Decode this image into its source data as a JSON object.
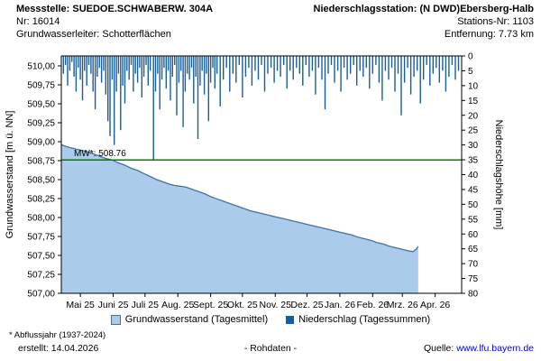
{
  "header": {
    "messstelle_label": "Messstelle:",
    "messstelle_value": "SUEDOE.SCHWABERW. 304A",
    "nr_label": "Nr:",
    "nr_value": "16014",
    "aquifer_label": "Grundwasserleiter:",
    "aquifer_value": "Schotterflächen",
    "station_label": "Niederschlagsstation:",
    "station_value": "(N DWD)Ebersberg-Halb",
    "station_nr_label": "Stations-Nr:",
    "station_nr_value": "1103",
    "distance_label": "Entfernung:",
    "distance_value": "7.73 km"
  },
  "chart_data": {
    "type": "combo",
    "x_axis": {
      "tick_labels": [
        "Mai 25",
        "Juni 25",
        "Juli 25",
        "Aug. 25",
        "Sept. 25",
        "Okt. 25",
        "Nov. 25",
        "Dez. 25",
        "Jan. 26",
        "Feb. 26",
        "Mrz. 26",
        "Apr. 26"
      ],
      "tick_days": [
        18,
        49,
        79,
        110,
        141,
        171,
        202,
        232,
        263,
        294,
        322,
        353
      ],
      "range_days": [
        0,
        378
      ]
    },
    "y_left": {
      "label": "Grundwasserstand [m ü. NN]",
      "min": 507.0,
      "max": 510.0,
      "tick_values": [
        510.0,
        509.75,
        509.5,
        509.25,
        509.0,
        508.75,
        508.5,
        508.25,
        508.0,
        507.75,
        507.5,
        507.25,
        507.0
      ],
      "tick_labels": [
        "510,00",
        "509,75",
        "509,50",
        "509,25",
        "509,00",
        "508,75",
        "508,50",
        "508,25",
        "508,00",
        "507,75",
        "507,50",
        "507,25",
        "507,00"
      ]
    },
    "y_right": {
      "label": "Niederschlagshöhe [mm]",
      "min": 0,
      "max": 80,
      "inverted": true,
      "tick_values": [
        0,
        5,
        10,
        15,
        20,
        25,
        30,
        35,
        40,
        45,
        50,
        55,
        60,
        65,
        70,
        75,
        80
      ],
      "tick_labels": [
        "0",
        "5",
        "10",
        "15",
        "20",
        "25",
        "30",
        "35",
        "40",
        "45",
        "50",
        "55",
        "60",
        "65",
        "70",
        "75",
        "80"
      ]
    },
    "reference_line": {
      "label": "MW*: 508.76",
      "value": 508.76,
      "color": "#008000"
    },
    "series": [
      {
        "name": "Grundwasserstand (Tagesmittel)",
        "type": "area",
        "axis": "left",
        "color_fill": "#aacbe9",
        "color_line": "#3f72a8",
        "points": [
          [
            0,
            508.96
          ],
          [
            6,
            508.93
          ],
          [
            12,
            508.91
          ],
          [
            18,
            508.89
          ],
          [
            24,
            508.87
          ],
          [
            30,
            508.84
          ],
          [
            36,
            508.81
          ],
          [
            42,
            508.78
          ],
          [
            48,
            508.76
          ],
          [
            54,
            508.72
          ],
          [
            60,
            508.69
          ],
          [
            66,
            508.65
          ],
          [
            72,
            508.62
          ],
          [
            78,
            508.58
          ],
          [
            84,
            508.54
          ],
          [
            90,
            508.5
          ],
          [
            96,
            508.47
          ],
          [
            102,
            508.44
          ],
          [
            108,
            508.42
          ],
          [
            114,
            508.41
          ],
          [
            118,
            508.4
          ],
          [
            122,
            508.38
          ],
          [
            126,
            508.36
          ],
          [
            130,
            508.34
          ],
          [
            136,
            508.31
          ],
          [
            142,
            508.27
          ],
          [
            148,
            508.24
          ],
          [
            154,
            508.21
          ],
          [
            160,
            508.18
          ],
          [
            166,
            508.15
          ],
          [
            172,
            508.12
          ],
          [
            178,
            508.09
          ],
          [
            184,
            508.07
          ],
          [
            190,
            508.05
          ],
          [
            196,
            508.03
          ],
          [
            202,
            508.01
          ],
          [
            208,
            507.99
          ],
          [
            214,
            507.97
          ],
          [
            220,
            507.95
          ],
          [
            226,
            507.93
          ],
          [
            232,
            507.91
          ],
          [
            238,
            507.89
          ],
          [
            244,
            507.87
          ],
          [
            250,
            507.85
          ],
          [
            256,
            507.83
          ],
          [
            262,
            507.81
          ],
          [
            268,
            507.79
          ],
          [
            274,
            507.77
          ],
          [
            280,
            507.74
          ],
          [
            286,
            507.72
          ],
          [
            292,
            507.7
          ],
          [
            298,
            507.67
          ],
          [
            304,
            507.65
          ],
          [
            310,
            507.62
          ],
          [
            316,
            507.6
          ],
          [
            322,
            507.58
          ],
          [
            328,
            507.56
          ],
          [
            332,
            507.55
          ],
          [
            335,
            507.58
          ],
          [
            337,
            507.62
          ]
        ]
      },
      {
        "name": "Niederschlag (Tagessummen)",
        "type": "bar",
        "axis": "right",
        "color": "#185d9e",
        "points": [
          [
            2,
            6
          ],
          [
            4,
            3
          ],
          [
            6,
            10
          ],
          [
            8,
            5
          ],
          [
            10,
            2
          ],
          [
            12,
            7
          ],
          [
            14,
            12
          ],
          [
            16,
            4
          ],
          [
            18,
            8
          ],
          [
            20,
            15
          ],
          [
            22,
            5
          ],
          [
            24,
            10
          ],
          [
            26,
            3
          ],
          [
            28,
            6
          ],
          [
            30,
            12
          ],
          [
            32,
            18
          ],
          [
            34,
            7
          ],
          [
            36,
            4
          ],
          [
            38,
            9
          ],
          [
            40,
            5
          ],
          [
            42,
            13
          ],
          [
            44,
            22
          ],
          [
            46,
            27
          ],
          [
            48,
            8
          ],
          [
            50,
            30
          ],
          [
            52,
            12
          ],
          [
            54,
            6
          ],
          [
            56,
            25
          ],
          [
            58,
            10
          ],
          [
            60,
            16
          ],
          [
            62,
            5
          ],
          [
            64,
            8
          ],
          [
            66,
            3
          ],
          [
            68,
            12
          ],
          [
            70,
            6
          ],
          [
            72,
            9
          ],
          [
            74,
            4
          ],
          [
            76,
            14
          ],
          [
            78,
            7
          ],
          [
            80,
            3
          ],
          [
            82,
            10
          ],
          [
            84,
            5
          ],
          [
            87,
            35
          ],
          [
            89,
            12
          ],
          [
            91,
            6
          ],
          [
            93,
            18
          ],
          [
            95,
            8
          ],
          [
            97,
            4
          ],
          [
            99,
            11
          ],
          [
            101,
            5
          ],
          [
            103,
            15
          ],
          [
            105,
            7
          ],
          [
            107,
            3
          ],
          [
            109,
            20
          ],
          [
            111,
            9
          ],
          [
            113,
            5
          ],
          [
            115,
            24
          ],
          [
            117,
            12
          ],
          [
            119,
            6
          ],
          [
            121,
            8
          ],
          [
            123,
            4
          ],
          [
            125,
            16
          ],
          [
            127,
            7
          ],
          [
            129,
            28
          ],
          [
            131,
            10
          ],
          [
            133,
            5
          ],
          [
            135,
            13
          ],
          [
            137,
            6
          ],
          [
            139,
            22
          ],
          [
            141,
            9
          ],
          [
            143,
            4
          ],
          [
            145,
            11
          ],
          [
            147,
            6
          ],
          [
            150,
            17
          ],
          [
            153,
            8
          ],
          [
            156,
            4
          ],
          [
            159,
            12
          ],
          [
            162,
            6
          ],
          [
            165,
            9
          ],
          [
            168,
            3
          ],
          [
            171,
            14
          ],
          [
            174,
            7
          ],
          [
            177,
            4
          ],
          [
            180,
            10
          ],
          [
            183,
            5
          ],
          [
            186,
            8
          ],
          [
            189,
            3
          ],
          [
            192,
            12
          ],
          [
            195,
            6
          ],
          [
            198,
            4
          ],
          [
            201,
            9
          ],
          [
            204,
            5
          ],
          [
            207,
            7
          ],
          [
            210,
            3
          ],
          [
            213,
            11
          ],
          [
            216,
            5
          ],
          [
            219,
            8
          ],
          [
            222,
            4
          ],
          [
            225,
            6
          ],
          [
            228,
            10
          ],
          [
            231,
            3
          ],
          [
            234,
            7
          ],
          [
            237,
            5
          ],
          [
            240,
            13
          ],
          [
            243,
            4
          ],
          [
            246,
            8
          ],
          [
            249,
            18
          ],
          [
            252,
            6
          ],
          [
            255,
            3
          ],
          [
            258,
            9
          ],
          [
            261,
            5
          ],
          [
            264,
            12
          ],
          [
            267,
            4
          ],
          [
            270,
            8
          ],
          [
            273,
            6
          ],
          [
            276,
            3
          ],
          [
            279,
            10
          ],
          [
            282,
            5
          ],
          [
            285,
            7
          ],
          [
            288,
            4
          ],
          [
            291,
            11
          ],
          [
            294,
            6
          ],
          [
            297,
            3
          ],
          [
            300,
            9
          ],
          [
            303,
            15
          ],
          [
            306,
            5
          ],
          [
            309,
            8
          ],
          [
            312,
            4
          ],
          [
            315,
            12
          ],
          [
            318,
            6
          ],
          [
            321,
            20
          ],
          [
            324,
            9
          ],
          [
            327,
            4
          ],
          [
            330,
            13
          ],
          [
            333,
            7
          ],
          [
            336,
            5
          ],
          [
            339,
            16
          ],
          [
            342,
            8
          ],
          [
            345,
            3
          ],
          [
            348,
            10
          ],
          [
            351,
            6
          ],
          [
            354,
            4
          ],
          [
            357,
            9
          ],
          [
            360,
            5
          ],
          [
            363,
            12
          ],
          [
            366,
            7
          ],
          [
            369,
            3
          ],
          [
            372,
            8
          ],
          [
            375,
            5
          ]
        ]
      }
    ]
  },
  "legend": {
    "groundwater": "Grundwasserstand (Tagesmittel)",
    "precipitation": "Niederschlag (Tagessummen)"
  },
  "footer": {
    "footnote": "* Abflussjahr (1937-2024)",
    "created_label": "erstellt:",
    "created_value": "14.04.2026",
    "center": "- Rohdaten -",
    "source_label": "Quelle:",
    "source_link": "www.lfu.bayern.de",
    "link_color": "#0000cc"
  }
}
